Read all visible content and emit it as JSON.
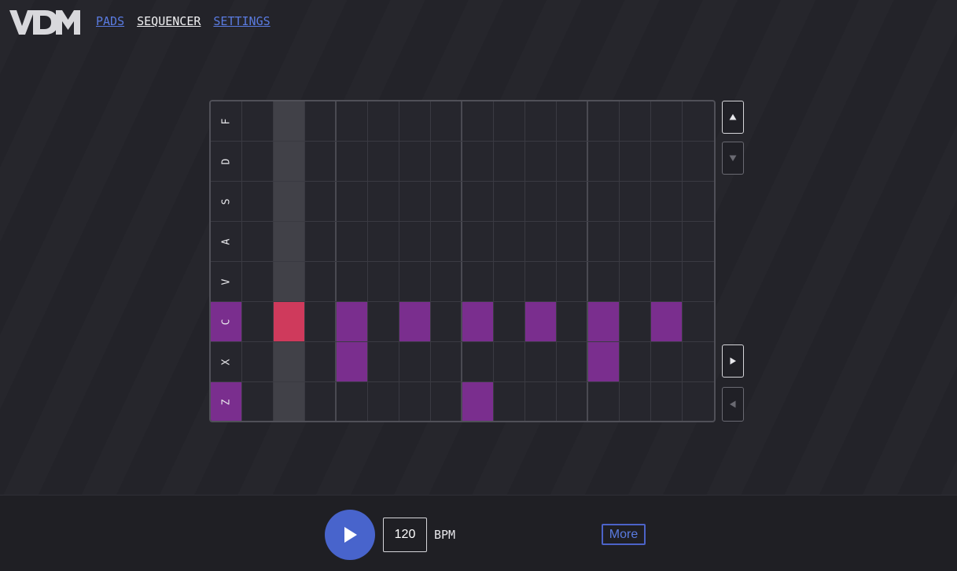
{
  "app": {
    "logo_text": "VDM"
  },
  "nav": {
    "items": [
      {
        "label": "PADS",
        "active": false
      },
      {
        "label": "SEQUENCER",
        "active": true
      },
      {
        "label": "SETTINGS",
        "active": false
      }
    ]
  },
  "sequencer": {
    "steps": 15,
    "playhead_step": 2,
    "rows": [
      {
        "key": "F",
        "active": false,
        "steps": []
      },
      {
        "key": "D",
        "active": false,
        "steps": []
      },
      {
        "key": "S",
        "active": false,
        "steps": []
      },
      {
        "key": "A",
        "active": false,
        "steps": []
      },
      {
        "key": "V",
        "active": false,
        "steps": []
      },
      {
        "key": "C",
        "active": true,
        "steps": [
          2,
          4,
          6,
          8,
          10,
          12,
          14
        ]
      },
      {
        "key": "X",
        "active": false,
        "steps": [
          4,
          12
        ]
      },
      {
        "key": "Z",
        "active": true,
        "steps": [
          8
        ]
      }
    ],
    "side_buttons": [
      "scroll-up",
      "scroll-down",
      "next-page",
      "previous-page"
    ]
  },
  "transport": {
    "bpm": "120",
    "bpm_label": "BPM",
    "more_label": "More"
  },
  "colors": {
    "background": "#232329",
    "accent": "#4864cc",
    "active_step": "#7a2e8e",
    "playhead": "#cf3a5c",
    "link": "#5a7be0"
  }
}
